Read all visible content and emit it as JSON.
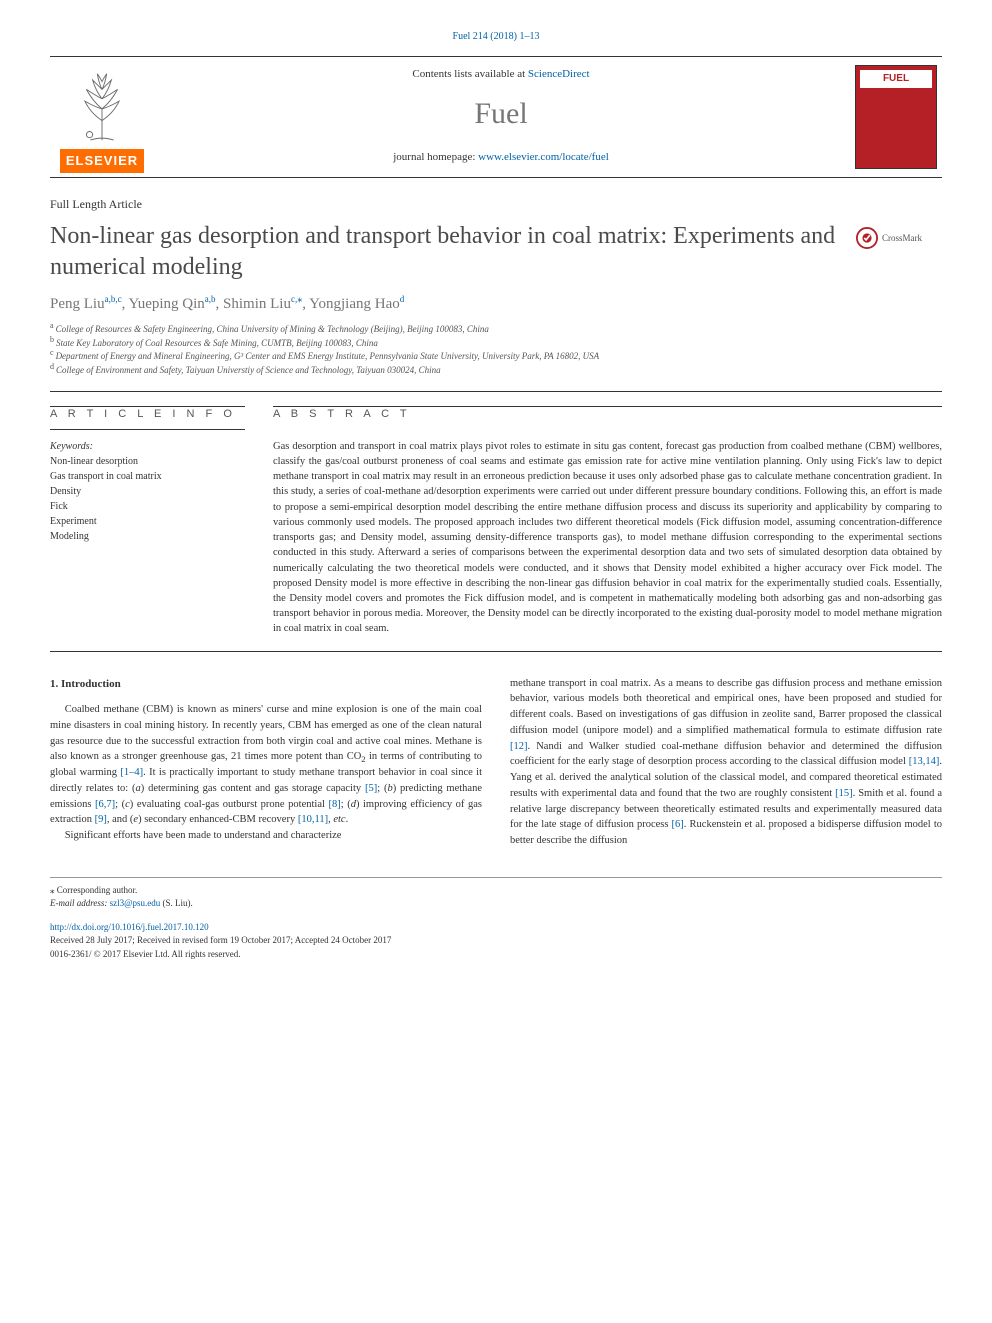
{
  "top_citation": "Fuel 214 (2018) 1–13",
  "header": {
    "contents_prefix": "Contents lists available at ",
    "contents_link": "ScienceDirect",
    "journal_name": "Fuel",
    "homepage_prefix": "journal homepage: ",
    "homepage_url": "www.elsevier.com/locate/fuel",
    "elsevier_label": "ELSEVIER",
    "cover_label": "FUEL"
  },
  "article_type": "Full Length Article",
  "title": "Non-linear gas desorption and transport behavior in coal matrix: Experiments and numerical modeling",
  "crossmark_label": "CrossMark",
  "authors_html": "Peng Liu<sup>a,b,c</sup>, Yueping Qin<sup>a,b</sup>, Shimin Liu<sup>c,</sup><span class='star'>⁎</span>, Yongjiang Hao<sup>d</sup>",
  "affiliations": [
    {
      "sup": "a",
      "text": "College of Resources & Safety Engineering, China University of Mining & Technology (Beijing), Beijing 100083, China"
    },
    {
      "sup": "b",
      "text": "State Key Laboratory of Coal Resources & Safe Mining, CUMTB, Beijing 100083, China"
    },
    {
      "sup": "c",
      "text": "Department of Energy and Mineral Engineering, G³ Center and EMS Energy Institute, Pennsylvania State University, University Park, PA 16802, USA"
    },
    {
      "sup": "d",
      "text": "College of Environment and Safety, Taiyuan Universtiy of Science and Technology, Taiyuan 030024, China"
    }
  ],
  "labels": {
    "article_info": "A R T I C L E   I N F O",
    "abstract": "A B S T R A C T",
    "keywords": "Keywords:"
  },
  "keywords": [
    "Non-linear desorption",
    "Gas transport in coal matrix",
    "Density",
    "Fick",
    "Experiment",
    "Modeling"
  ],
  "abstract": "Gas desorption and transport in coal matrix plays pivot roles to estimate in situ gas content, forecast gas production from coalbed methane (CBM) wellbores, classify the gas/coal outburst proneness of coal seams and estimate gas emission rate for active mine ventilation planning. Only using Fick's law to depict methane transport in coal matrix may result in an erroneous prediction because it uses only adsorbed phase gas to calculate methane concentration gradient. In this study, a series of coal-methane ad/desorption experiments were carried out under different pressure boundary conditions. Following this, an effort is made to propose a semi-empirical desorption model describing the entire methane diffusion process and discuss its superiority and applicability by comparing to various commonly used models. The proposed approach includes two different theoretical models (Fick diffusion model, assuming concentration-difference transports gas; and Density model, assuming density-difference transports gas), to model methane diffusion corresponding to the experimental sections conducted in this study. Afterward a series of comparisons between the experimental desorption data and two sets of simulated desorption data obtained by numerically calculating the two theoretical models were conducted, and it shows that Density model exhibited a higher accuracy over Fick model. The proposed Density model is more effective in describing the non-linear gas diffusion behavior in coal matrix for the experimentally studied coals. Essentially, the Density model covers and promotes the Fick diffusion model, and is competent in mathematically modeling both adsorbing gas and non-adsorbing gas transport behavior in porous media. Moreover, the Density model can be directly incorporated to the existing dual-porosity model to model methane migration in coal matrix in coal seam.",
  "intro_heading": "1. Introduction",
  "intro_para1_html": "Coalbed methane (CBM) is known as miners' curse and mine explosion is one of the main coal mine disasters in coal mining history. In recently years, CBM has emerged as one of the clean natural gas resource due to the successful extraction from both virgin coal and active coal mines. Methane is also known as a stronger greenhouse gas, 21 times more potent than CO<sub>2</sub> in terms of contributing to global warming <a href='#'>[1–4]</a>. It is practically important to study methane transport behavior in coal since it directly relates to: (<span class='italic'>a</span>) determining gas content and gas storage capacity <a href='#'>[5]</a>; (<span class='italic'>b</span>) predicting methane emissions <a href='#'>[6,7]</a>; (<span class='italic'>c</span>) evaluating coal-gas outburst prone potential <a href='#'>[8]</a>; (<span class='italic'>d</span>) improving efficiency of gas extraction <a href='#'>[9]</a>, and (<span class='italic'>e</span>) secondary enhanced-CBM recovery <a href='#'>[10,11]</a>, <span class='italic'>etc</span>.",
  "intro_para2": "Significant efforts have been made to understand and characterize",
  "intro_para_col2_html": "methane transport in coal matrix. As a means to describe gas diffusion process and methane emission behavior, various models both theoretical and empirical ones, have been proposed and studied for different coals. Based on investigations of gas diffusion in zeolite sand, Barrer proposed the classical diffusion model (unipore model) and a simplified mathematical formula to estimate diffusion rate <a href='#'>[12]</a>. Nandi and Walker studied coal-methane diffusion behavior and determined the diffusion coefficient for the early stage of desorption process according to the classical diffusion model <a href='#'>[13,14]</a>. Yang et al. derived the analytical solution of the classical model, and compared theoretical estimated results with experimental data and found that the two are roughly consistent <a href='#'>[15]</a>. Smith et al. found a relative large discrepancy between theoretically estimated results and experimentally measured data for the late stage of diffusion process <a href='#'>[6]</a>. Ruckenstein et al. proposed a bidisperse diffusion model to better describe the diffusion",
  "footer": {
    "corresponding": "⁎ Corresponding author.",
    "email_label": "E-mail address: ",
    "email": "szl3@psu.edu",
    "email_suffix": " (S. Liu).",
    "doi": "http://dx.doi.org/10.1016/j.fuel.2017.10.120",
    "received": "Received 28 July 2017; Received in revised form 19 October 2017; Accepted 24 October 2017",
    "copyright": "0016-2361/ © 2017 Elsevier Ltd. All rights reserved."
  },
  "colors": {
    "link": "#0061a6",
    "elsevier_orange": "#ff6c00",
    "cover_red": "#b42025",
    "gray_text": "#767676"
  }
}
